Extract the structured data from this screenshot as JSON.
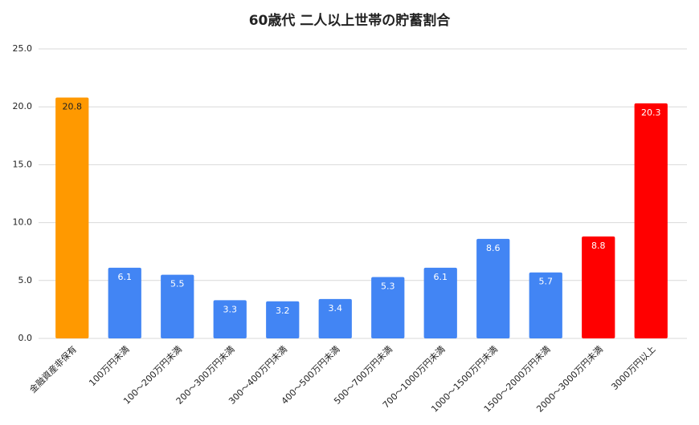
{
  "chart_data": {
    "type": "bar",
    "title": "60歳代 二人以上世帯の貯蓄割合",
    "categories": [
      "金融資産非保有",
      "100万円未満",
      "100〜200万円未満",
      "200〜300万円未満",
      "300〜400万円未満",
      "400〜500万円未満",
      "500〜700万円未満",
      "700〜1000万円未満",
      "1000〜1500万円未満",
      "1500〜2000万円未満",
      "2000〜3000万円未満",
      "3000万円以上"
    ],
    "values": [
      20.8,
      6.1,
      5.5,
      3.3,
      3.2,
      3.4,
      5.3,
      6.1,
      8.6,
      5.7,
      8.8,
      20.3
    ],
    "colors": [
      "#ff9900",
      "#4285f4",
      "#4285f4",
      "#4285f4",
      "#4285f4",
      "#4285f4",
      "#4285f4",
      "#4285f4",
      "#4285f4",
      "#4285f4",
      "#ff0000",
      "#ff0000"
    ],
    "ylim": [
      0,
      25
    ],
    "yticks": [
      {
        "value": 0,
        "label": "0.0"
      },
      {
        "value": 5,
        "label": "5.0"
      },
      {
        "value": 10,
        "label": "10.0"
      },
      {
        "value": 15,
        "label": "15.0"
      },
      {
        "value": 20,
        "label": "20.0"
      },
      {
        "value": 25,
        "label": "25.0"
      }
    ],
    "grid": true
  }
}
